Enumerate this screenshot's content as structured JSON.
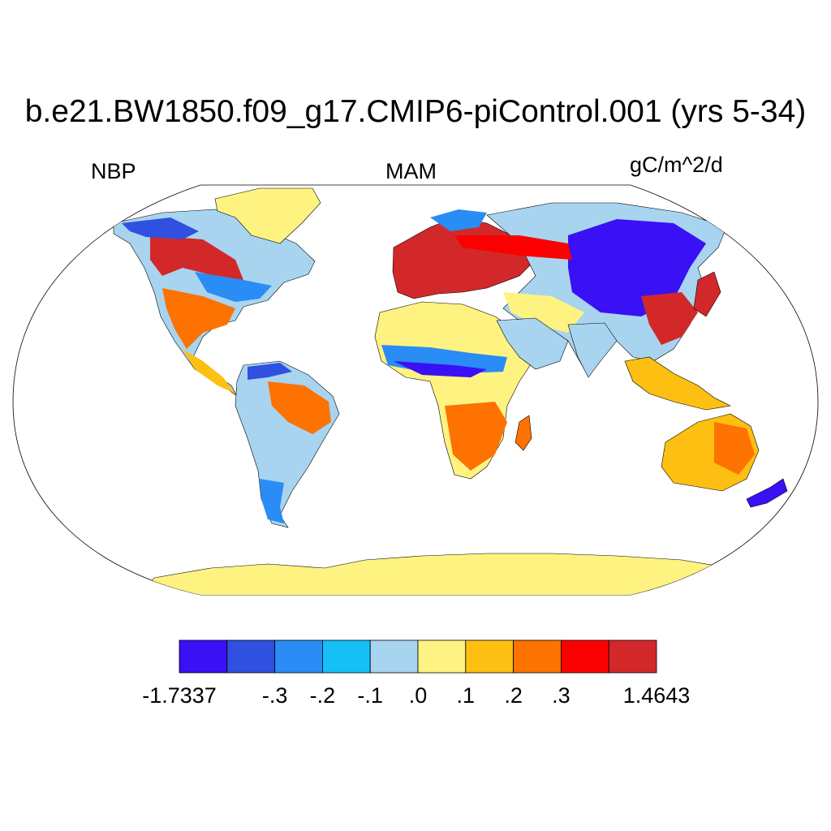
{
  "title": "b.e21.BW1850.f09_g17.CMIP6-piControl.001 (yrs 5-34)",
  "left_label": "NBP",
  "center_label": "MAM",
  "right_label": "gC/m^2/d",
  "colorbar": {
    "colors": [
      "#3a10f5",
      "#3050e0",
      "#2a8cf5",
      "#16c0f7",
      "#a8d4f0",
      "#fef381",
      "#fdbf12",
      "#fd7200",
      "#fb0000",
      "#d3282a"
    ],
    "labels": [
      "-1.7337",
      "-.3",
      "-.2",
      "-.1",
      ".0",
      ".1",
      ".2",
      ".3",
      "1.4643"
    ]
  },
  "palette": {
    "ocean": "#ffffff",
    "outline": "#000000"
  }
}
